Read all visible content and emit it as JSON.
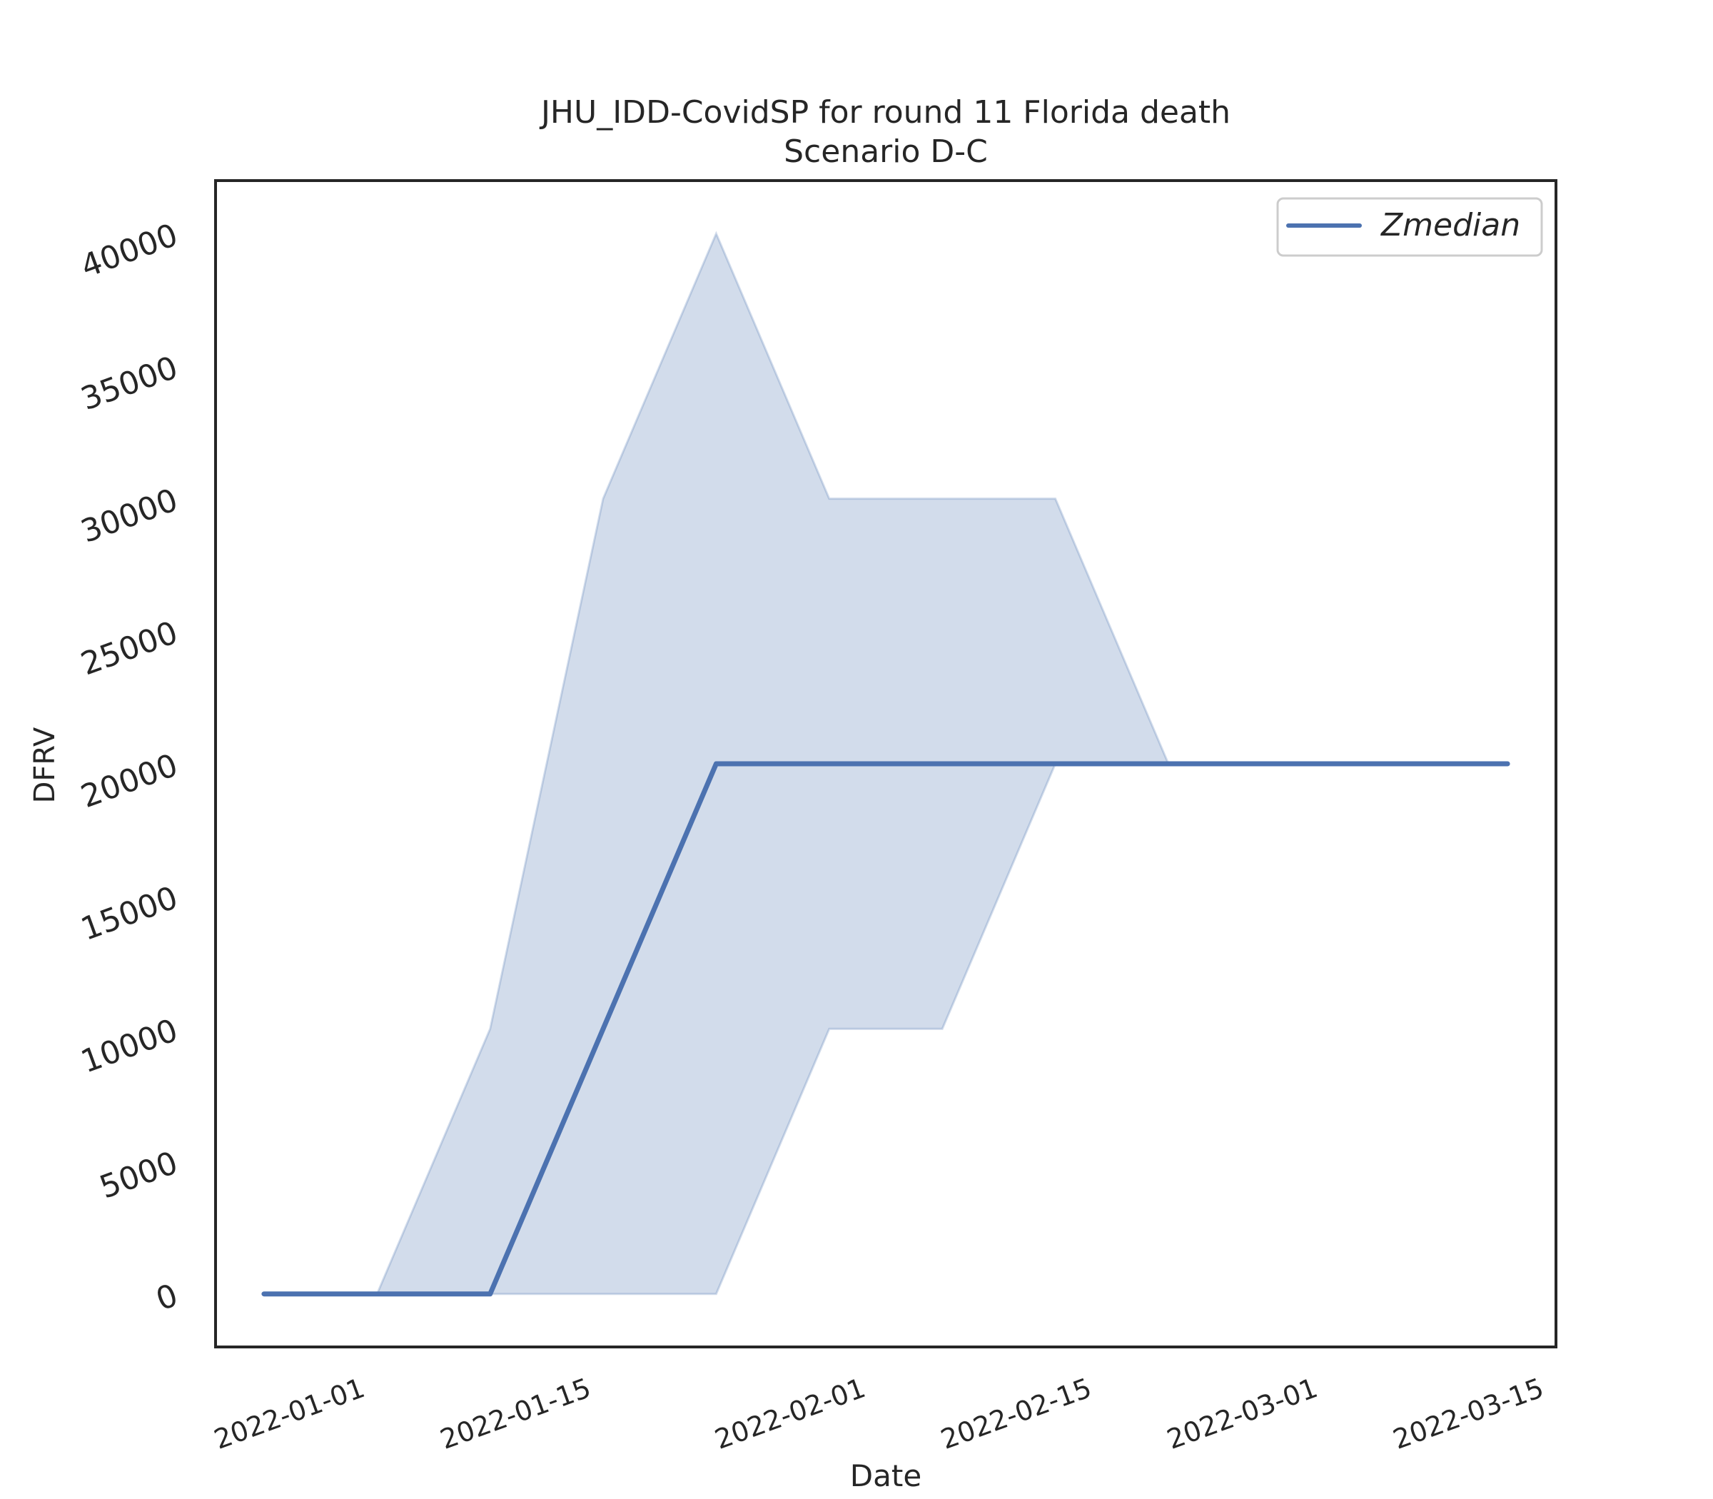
{
  "chart_data": {
    "type": "line",
    "title": "JHU_IDD-CovidSP for round 11 Florida death",
    "subtitle": "Scenario D-C",
    "xlabel": "Date",
    "ylabel": "DFRV",
    "x_ticks": [
      "2022-01-01",
      "2022-01-15",
      "2022-02-01",
      "2022-02-15",
      "2022-03-01",
      "2022-03-15"
    ],
    "y_ticks": [
      0,
      5000,
      10000,
      15000,
      20000,
      25000,
      30000,
      35000,
      40000
    ],
    "xlim": [
      "2021-12-23",
      "2022-03-16"
    ],
    "ylim": [
      -2000,
      42000
    ],
    "legend": {
      "position": "top-right"
    },
    "grid": false,
    "dates": [
      "2021-12-26",
      "2022-01-02",
      "2022-01-09",
      "2022-01-16",
      "2022-01-23",
      "2022-01-30",
      "2022-02-06",
      "2022-02-13",
      "2022-02-20",
      "2022-02-27",
      "2022-03-06",
      "2022-03-13"
    ],
    "series": [
      {
        "name": "Zmedian",
        "type": "line",
        "color": "#4c72b0",
        "values": [
          0,
          0,
          0,
          10000,
          20000,
          20000,
          20000,
          20000,
          20000,
          20000,
          20000,
          20000
        ]
      }
    ],
    "band": {
      "color": "#4c72b0",
      "opacity": 0.25,
      "lower": [
        0,
        0,
        0,
        0,
        0,
        10000,
        10000,
        20000,
        20000,
        20000,
        20000,
        20000
      ],
      "upper": [
        0,
        0,
        10000,
        30000,
        40000,
        30000,
        30000,
        30000,
        20000,
        20000,
        20000,
        20000
      ]
    }
  }
}
